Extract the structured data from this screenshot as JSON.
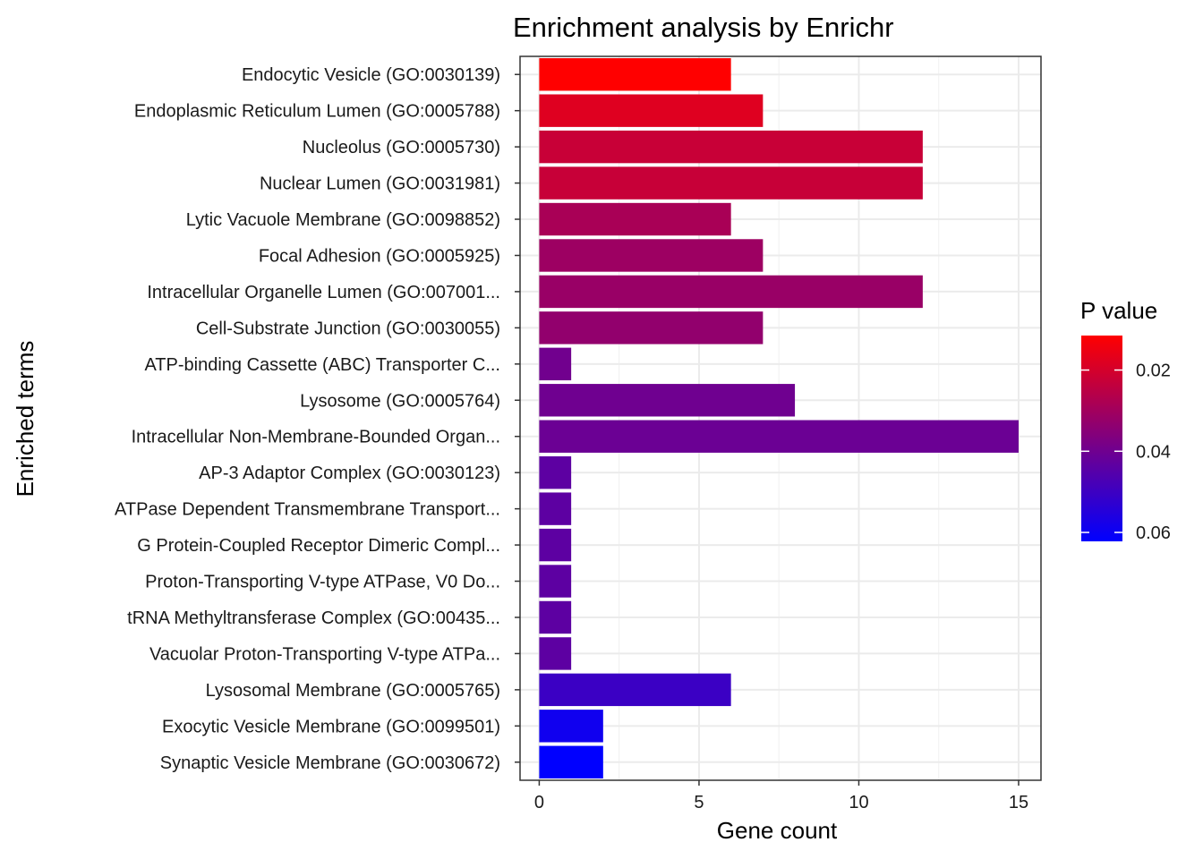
{
  "chart_data": {
    "type": "bar",
    "orientation": "horizontal",
    "title": "Enrichment analysis by Enrichr",
    "xlabel": "Gene count",
    "ylabel": "Enriched terms",
    "xlim": [
      -0.6,
      15.7
    ],
    "xticks": [
      0,
      5,
      10,
      15
    ],
    "grid": true,
    "legend_placement": "right",
    "categories": [
      "Endocytic Vesicle (GO:0030139)",
      "Endoplasmic Reticulum Lumen (GO:0005788)",
      "Nucleolus (GO:0005730)",
      "Nuclear Lumen (GO:0031981)",
      "Lytic Vacuole Membrane (GO:0098852)",
      "Focal Adhesion (GO:0005925)",
      "Intracellular Organelle Lumen (GO:007001...",
      "Cell-Substrate Junction (GO:0030055)",
      "ATP-binding Cassette (ABC) Transporter C...",
      "Lysosome (GO:0005764)",
      "Intracellular Non-Membrane-Bounded Organ...",
      "AP-3 Adaptor Complex (GO:0030123)",
      "ATPase Dependent Transmembrane Transport...",
      "G Protein-Coupled Receptor Dimeric Compl...",
      "Proton-Transporting V-type ATPase, V0 Do...",
      "tRNA Methyltransferase Complex (GO:00435...",
      "Vacuolar Proton-Transporting V-type ATPa...",
      "Lysosomal Membrane (GO:0005765)",
      "Exocytic Vesicle Membrane (GO:0099501)",
      "Synaptic Vesicle Membrane (GO:0030672)"
    ],
    "values": [
      6,
      7,
      12,
      12,
      6,
      7,
      12,
      7,
      1,
      8,
      15,
      1,
      1,
      1,
      1,
      1,
      1,
      6,
      2,
      2
    ],
    "p_values": [
      0.0115,
      0.0178,
      0.0225,
      0.0227,
      0.0285,
      0.031,
      0.0318,
      0.0332,
      0.0397,
      0.0402,
      0.041,
      0.0437,
      0.0437,
      0.0437,
      0.0437,
      0.0437,
      0.0437,
      0.0505,
      0.059,
      0.0622
    ],
    "color_scale": {
      "title": "P value",
      "low_color": "#ff0000",
      "high_color": "#0000ff",
      "domain": [
        0.0115,
        0.0622
      ],
      "ticks": [
        0.02,
        0.04,
        0.06
      ],
      "tick_labels": [
        "0.02",
        "0.04",
        "0.06"
      ]
    }
  }
}
